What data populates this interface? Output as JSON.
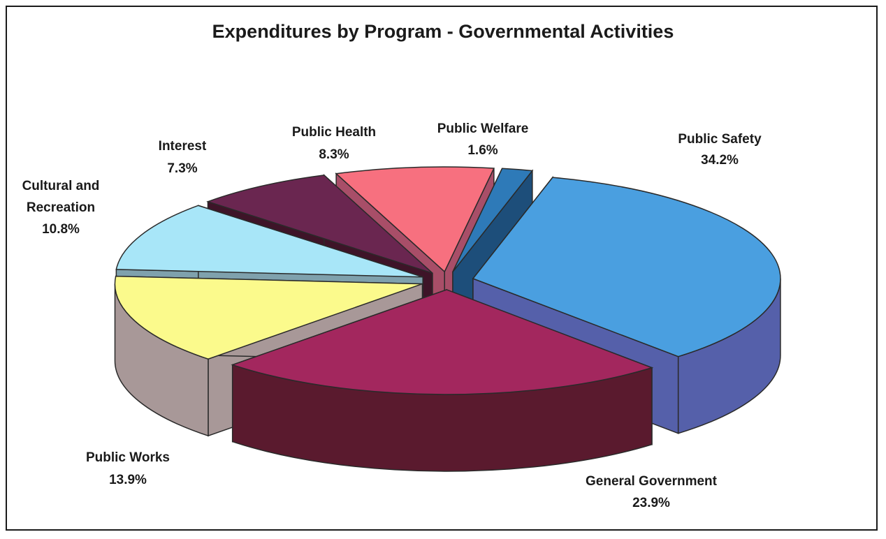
{
  "chart_data": {
    "type": "pie",
    "title": "Expenditures by Program - Governmental Activities",
    "three_d": true,
    "exploded": true,
    "slices": [
      {
        "label": "Public Safety",
        "value": 34.2,
        "display": "34.2%",
        "top_color": "#4a9fe0",
        "side_color": "#5560aa"
      },
      {
        "label": "General Government",
        "value": 23.9,
        "display": "23.9%",
        "top_color": "#a3275e",
        "side_color": "#5a1a2e"
      },
      {
        "label": "Public Works",
        "value": 13.9,
        "display": "13.9%",
        "top_color": "#fbfa8c",
        "side_color": "#a89898"
      },
      {
        "label": "Cultural and Recreation",
        "value": 10.8,
        "display": "10.8%",
        "top_color": "#a8e6f8",
        "side_color": "#7fa1ad"
      },
      {
        "label": "Interest",
        "value": 7.3,
        "display": "7.3%",
        "top_color": "#6a2650",
        "side_color": "#3e1428"
      },
      {
        "label": "Public Health",
        "value": 8.3,
        "display": "8.3%",
        "top_color": "#f7707f",
        "side_color": "#a84e68"
      },
      {
        "label": "Public Welfare",
        "value": 1.6,
        "display": "1.6%",
        "top_color": "#2e7ab8",
        "side_color": "#1d4e7a"
      }
    ]
  }
}
